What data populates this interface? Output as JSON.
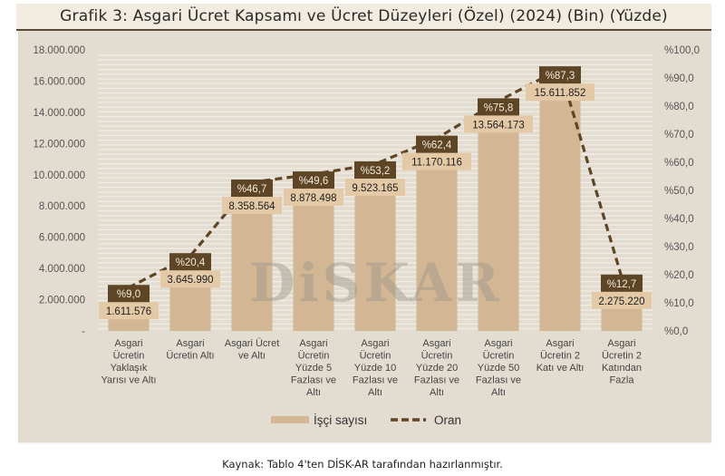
{
  "title": "Grafik 3: Asgari Ücret Kapsamı ve Ücret Düzeyleri (Özel) (2024) (Bin) (Yüzde)",
  "caption": "Kaynak: Tablo 4'ten DİSK-AR tarafından hazırlanmıştır.",
  "watermark": "DiSKAR",
  "colors": {
    "panel_bg": "#e3dcd1",
    "bar": "#d3b795",
    "value_label_bg": "#e3c9a6",
    "pct_label_bg": "#5e4526",
    "line": "#5e4526",
    "gridline": "#f1ece4",
    "axis_text": "#555555"
  },
  "legend": {
    "bar_label": "İşçi sayısı",
    "line_label": "Oran"
  },
  "chart_data": {
    "type": "bar+line",
    "title": "Grafik 3: Asgari Ücret Kapsamı ve Ücret Düzeyleri (Özel) (2024) (Bin) (Yüzde)",
    "categories": [
      "Asgari Ücretin Yaklaşık Yarısı ve Altı",
      "Asgari Ücretin Altı",
      "Asgari Ücret ve Altı",
      "Asgari Ücretin Yüzde 5 Fazlası ve Altı",
      "Asgari Ücretin Yüzde 10 Fazlası ve Altı",
      "Asgari Ücretin Yüzde 20 Fazlası ve Altı",
      "Asgari Ücretin Yüzde 50 Fazlası ve Altı",
      "Asgari Ücretin 2 Katı ve Altı",
      "Asgari Ücretin 2 Katından Fazla"
    ],
    "category_lines": [
      [
        "Asgari",
        "Ücretin",
        "Yaklaşık",
        "Yarısı ve Altı"
      ],
      [
        "Asgari",
        "Ücretin Altı"
      ],
      [
        "Asgari Ücret",
        "ve Altı"
      ],
      [
        "Asgari",
        "Ücretin",
        "Yüzde 5",
        "Fazlası ve",
        "Altı"
      ],
      [
        "Asgari",
        "Ücretin",
        "Yüzde 10",
        "Fazlası ve",
        "Altı"
      ],
      [
        "Asgari",
        "Ücretin",
        "Yüzde 20",
        "Fazlası ve",
        "Altı"
      ],
      [
        "Asgari",
        "Ücretin",
        "Yüzde 50",
        "Fazlası ve",
        "Altı"
      ],
      [
        "Asgari",
        "Ücretin 2",
        "Katı ve Altı"
      ],
      [
        "Asgari",
        "Ücretin 2",
        "Katından",
        "Fazla"
      ]
    ],
    "series": [
      {
        "name": "İşçi sayısı",
        "type": "bar",
        "axis": "left",
        "values": [
          1611576,
          3645990,
          8358564,
          8878498,
          9523165,
          11170116,
          13564173,
          15611852,
          2275220
        ],
        "labels": [
          "1.611.576",
          "3.645.990",
          "8.358.564",
          "8.878.498",
          "9.523.165",
          "11.170.116",
          "13.564.173",
          "15.611.852",
          "2.275.220"
        ]
      },
      {
        "name": "Oran",
        "type": "line",
        "style": "dashed",
        "axis": "right",
        "values": [
          9.0,
          20.4,
          46.7,
          49.6,
          53.2,
          62.4,
          75.8,
          87.3,
          12.7
        ],
        "labels": [
          "%9,0",
          "%20,4",
          "%46,7",
          "%49,6",
          "%53,2",
          "%62,4",
          "%75,8",
          "%87,3",
          "%12,7"
        ]
      }
    ],
    "y_left": {
      "ylim": [
        0,
        18000000
      ],
      "ticks": [
        "-",
        "2.000.000",
        "4.000.000",
        "6.000.000",
        "8.000.000",
        "10.000.000",
        "12.000.000",
        "14.000.000",
        "16.000.000",
        "18.000.000"
      ]
    },
    "y_right": {
      "ylim": [
        0,
        100
      ],
      "ticks": [
        "%0,0",
        "%10,0",
        "%20,0",
        "%30,0",
        "%40,0",
        "%50,0",
        "%60,0",
        "%70,0",
        "%80,0",
        "%90,0",
        "%100,0"
      ]
    },
    "xlabel": "",
    "ylabel": "",
    "grid": true,
    "legend_position": "bottom"
  }
}
